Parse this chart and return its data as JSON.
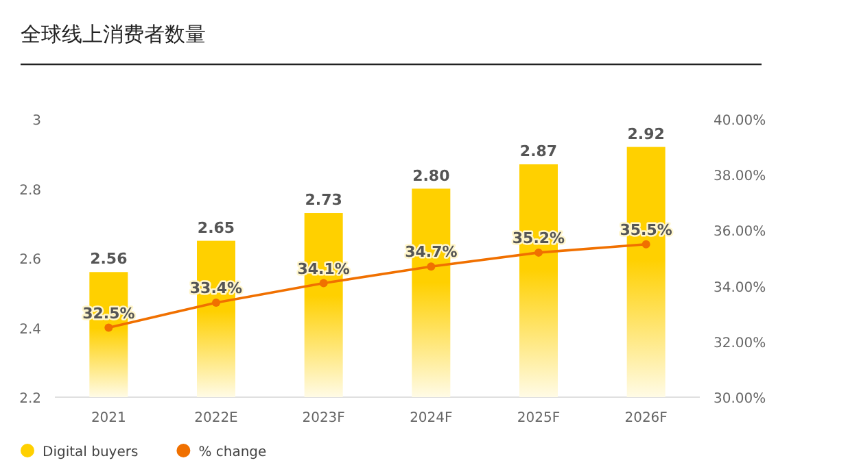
{
  "chart_data": {
    "type": "bar",
    "title": "全球线上消费者数量",
    "categories": [
      "2021",
      "2022E",
      "2023F",
      "2024F",
      "2025F",
      "2026F"
    ],
    "series": [
      {
        "name": "Digital buyers",
        "color": "#ffd000",
        "values": [
          2.56,
          2.65,
          2.73,
          2.8,
          2.87,
          2.92
        ],
        "value_labels": [
          "2.56",
          "2.65",
          "2.73",
          "2.80",
          "2.87",
          "2.92"
        ]
      },
      {
        "name": "% change",
        "type": "line",
        "axis": "y2",
        "color": "#f07000",
        "values": [
          32.5,
          33.4,
          34.1,
          34.7,
          35.2,
          35.5
        ],
        "value_labels": [
          "32.5%",
          "33.4%",
          "34.1%",
          "34.7%",
          "35.2%",
          "35.5%"
        ]
      }
    ],
    "ylim": [
      2.2,
      3
    ],
    "yticks": [
      2.2,
      2.4,
      2.6,
      2.8,
      3
    ],
    "y2lim": [
      30,
      40
    ],
    "y2ticks": [
      {
        "value": 30,
        "label": "30.00%"
      },
      {
        "value": 32,
        "label": "32.00%"
      },
      {
        "value": 34,
        "label": "34.00%"
      },
      {
        "value": 36,
        "label": "36.00%"
      },
      {
        "value": 38,
        "label": "38.00%"
      },
      {
        "value": 40,
        "label": "40.00%"
      }
    ],
    "legend": "bottom left",
    "marker": "circle"
  }
}
